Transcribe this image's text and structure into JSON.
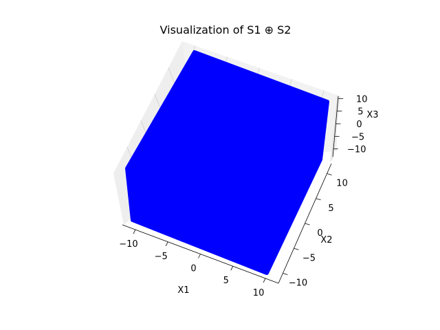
{
  "chart_data": {
    "type": "surface3d",
    "title": "Visualization of S1 ⊕ S2",
    "xlabel": "X1",
    "ylabel": "X2",
    "zlabel": "X3",
    "xlim": [
      -12,
      12
    ],
    "ylim": [
      -12,
      12
    ],
    "zlim": [
      -12,
      12
    ],
    "x_ticks": [
      -10,
      -5,
      0,
      5,
      10
    ],
    "y_ticks": [
      -10,
      -5,
      0,
      5,
      10
    ],
    "z_ticks": [
      -10,
      -5,
      0,
      5,
      10
    ],
    "shape": "cube",
    "extent": {
      "x": [
        -10,
        10
      ],
      "y": [
        -10,
        10
      ],
      "z": [
        -10,
        10
      ]
    },
    "grid": true,
    "colors": {
      "fill": "#0000ff",
      "pane": "#f2f2f2",
      "pane_dark": "#e6e6e6",
      "grid": "#cfcfcf"
    }
  }
}
